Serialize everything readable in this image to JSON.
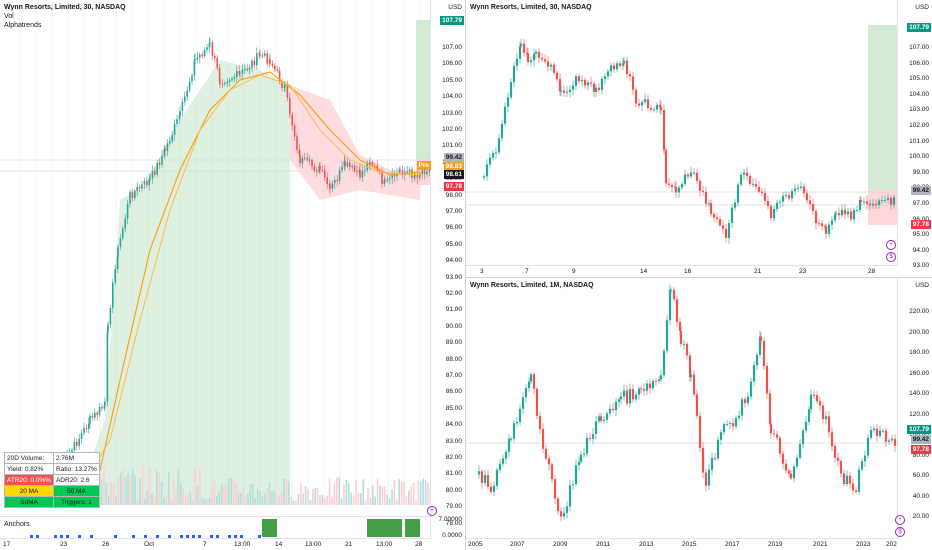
{
  "colors": {
    "up": "#26a69a",
    "down": "#ef5350",
    "ma": "#f7a21b",
    "green_tag": "#089981",
    "red_tag": "#f23645",
    "zone_green": "#c8e6c9",
    "zone_red": "#ffcdd2"
  },
  "left": {
    "title": "Wynn Resorts, Limited, 30, NASDAQ",
    "vol": "Vol",
    "indicator": "Alphatrends",
    "currency": "USD",
    "price_labels": [
      "107.00",
      "106.00",
      "105.00",
      "104.00",
      "103.00",
      "102.00",
      "101.00",
      "100.00",
      "99.00",
      "98.00",
      "97.00",
      "96.00",
      "95.00",
      "94.00",
      "93.00",
      "92.00",
      "91.00",
      "90.00",
      "89.00",
      "88.00",
      "87.00",
      "86.00",
      "85.00",
      "84.00",
      "83.00",
      "82.00",
      "81.00",
      "80.00",
      "79.00",
      "78.00"
    ],
    "tags": {
      "top": "107.79",
      "a": "99.42",
      "b": "98.83",
      "c": "98.61",
      "d": "97.78",
      "pre": "Pre"
    },
    "x_labels": [
      "17",
      "23",
      "26",
      "Oct",
      "7",
      "13:00",
      "14",
      "13:00",
      "21",
      "13:00",
      "28"
    ],
    "table": [
      [
        "20D Volume:",
        "2.76M"
      ],
      [
        "Yield: 0.82%",
        "Ratio: 13.27%"
      ],
      [
        "ATR20: 0.0%%",
        "ADR20: 2.6"
      ],
      [
        "20 MA",
        "50 MA"
      ],
      [
        "SdMA",
        "Triggers: 1"
      ]
    ],
    "anchors": "Anchors",
    "anchor_value": "7.00000",
    "anchor_zero": "0.0000"
  },
  "topright": {
    "title": "Wynn Resorts, Limited, 30, NASDAQ",
    "currency": "USD",
    "price_labels": [
      "107.00",
      "106.00",
      "105.00",
      "104.00",
      "103.00",
      "102.00",
      "101.00",
      "100.00",
      "99.00",
      "98.00",
      "97.00",
      "96.00",
      "95.00",
      "94.00",
      "93.00"
    ],
    "tags": {
      "top": "107.79",
      "a": "99.42",
      "b": "97.78"
    },
    "x_labels": [
      "3",
      "7",
      "9",
      "14",
      "16",
      "21",
      "23",
      "28"
    ]
  },
  "bottomright": {
    "title": "Wynn Resorts, Limited, 1M, NASDAQ",
    "currency": "USD",
    "price_labels": [
      "220.00",
      "200.00",
      "180.00",
      "160.00",
      "140.00",
      "120.00",
      "100.00",
      "80.00",
      "60.00",
      "40.00",
      "20.00"
    ],
    "tags": {
      "top": "107.79",
      "a": "99.42",
      "b": "97.78"
    },
    "x_labels": [
      "2005",
      "2007",
      "2009",
      "2011",
      "2013",
      "2015",
      "2017",
      "2019",
      "2021",
      "2023",
      "202"
    ]
  }
}
